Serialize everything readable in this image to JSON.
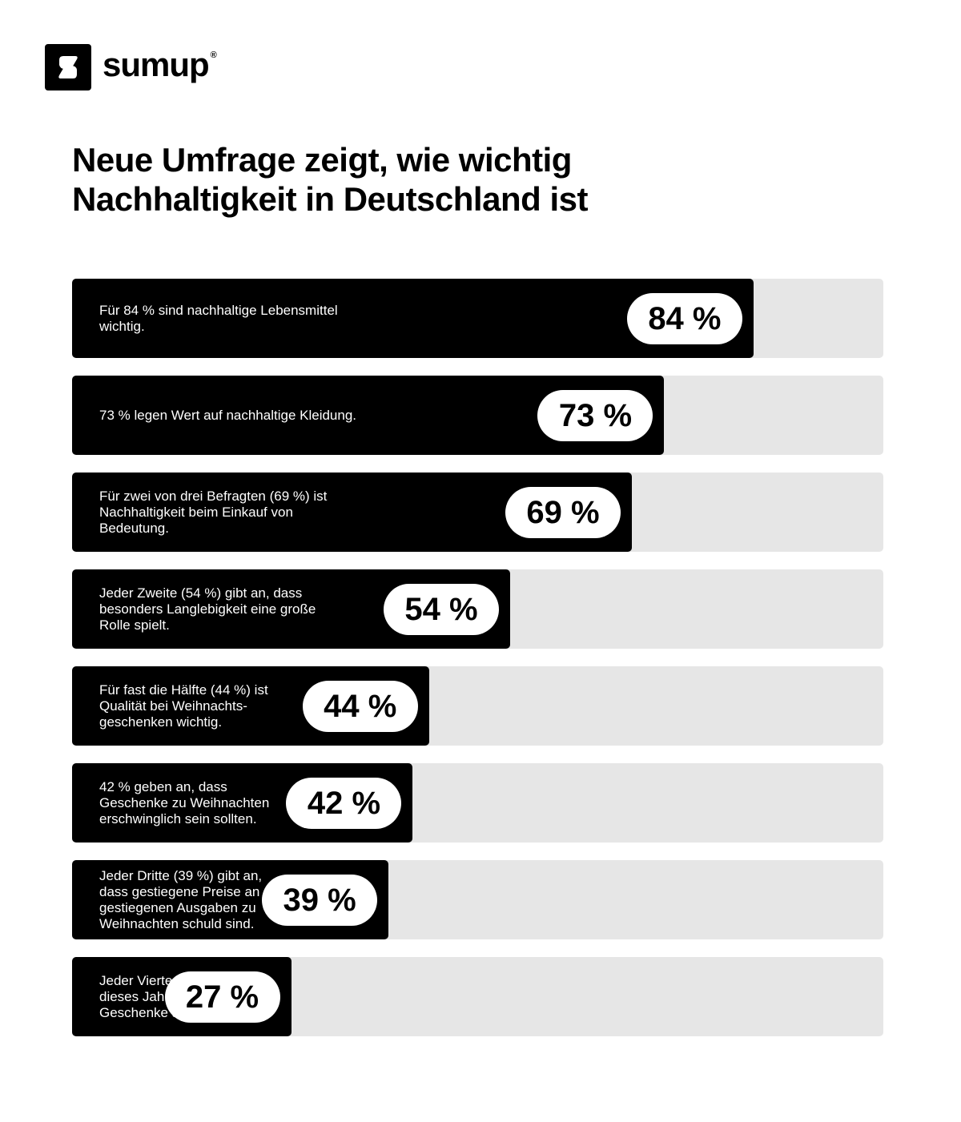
{
  "brand": {
    "name": "sumup",
    "reg": "®"
  },
  "title_lines": [
    "Neue Umfrage zeigt, wie wichtig",
    "Nachhaltigkeit in Deutschland ist"
  ],
  "colors": {
    "fill": "#000000",
    "track": "#e6e6e6",
    "badge": "#ffffff"
  },
  "chart_data": {
    "type": "bar",
    "orientation": "horizontal",
    "xlim": [
      0,
      100
    ],
    "unit": "%",
    "items": [
      {
        "value": 84,
        "badge": "84 %",
        "label": "Für 84 % sind nachhaltige Lebensmittel wichtig."
      },
      {
        "value": 73,
        "badge": "73 %",
        "label": "73 % legen Wert auf nachhaltige Kleidung."
      },
      {
        "value": 69,
        "badge": "69 %",
        "label": "Für zwei von drei Befragten (69 %) ist\nNachhaltigkeit beim Einkauf von Bedeutung."
      },
      {
        "value": 54,
        "badge": "54 %",
        "label": "Jeder Zweite (54 %) gibt an, dass\nbesonders Langlebigkeit eine große\nRolle spielt."
      },
      {
        "value": 44,
        "badge": "44 %",
        "label": "Für fast die Hälfte (44 %) ist\nQualität bei Weihnachts-\ngeschenken wichtig."
      },
      {
        "value": 42,
        "badge": "42 %",
        "label": "42 % geben an, dass\nGeschenke zu Weihnachten\nerschwinglich sein sollten."
      },
      {
        "value": 39,
        "badge": "39 %",
        "label": "Jeder Dritte (39 %) gibt an,\ndass gestiegene Preise an\ngestiegenen Ausgaben zu\nWeihnachten schuld sind."
      },
      {
        "value": 27,
        "badge": "27 %",
        "label": "Jeder Vierte (27 %) wird\ndieses Jahr mehr für\nGeschenke ausgeben."
      }
    ]
  }
}
